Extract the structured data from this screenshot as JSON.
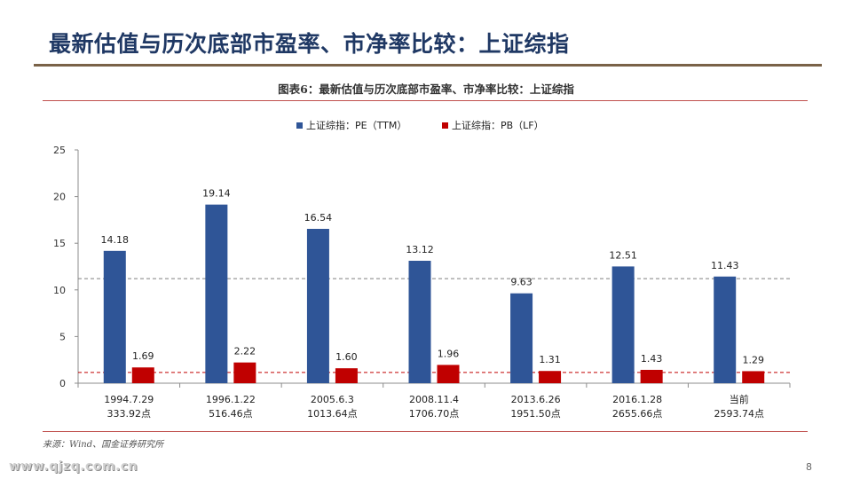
{
  "slide": {
    "title": "最新估值与历次底部市盈率、市净率比较：上证综指",
    "figure_caption": "图表6：最新估值与历次底部市盈率、市净率比较：上证综指",
    "source": "来源：Wind、国金证券研究所",
    "watermark": "www.qjzq.com.cn",
    "page_number": "8"
  },
  "chart_data": {
    "type": "bar",
    "categories": [
      {
        "date": "1994.7.29",
        "index": "333.92点"
      },
      {
        "date": "1996.1.22",
        "index": "516.46点"
      },
      {
        "date": "2005.6.3",
        "index": "1013.64点"
      },
      {
        "date": "2008.11.4",
        "index": "1706.70点"
      },
      {
        "date": "2013.6.26",
        "index": "1951.50点"
      },
      {
        "date": "2016.1.28",
        "index": "2655.66点"
      },
      {
        "date": "当前",
        "index": "2593.74点"
      }
    ],
    "series": [
      {
        "name": "上证综指：PE（TTM）",
        "color": "#2f5597",
        "values": [
          14.18,
          19.14,
          16.54,
          13.12,
          9.63,
          12.51,
          11.43
        ],
        "labels": [
          "14.18",
          "19.14",
          "16.54",
          "13.12",
          "9.63",
          "12.51",
          "11.43"
        ]
      },
      {
        "name": "上证综指：PB（LF）",
        "color": "#c00000",
        "values": [
          1.69,
          2.22,
          1.6,
          1.96,
          1.31,
          1.43,
          1.29
        ],
        "labels": [
          "1.69",
          "2.22",
          "1.60",
          "1.96",
          "1.31",
          "1.43",
          "1.29"
        ]
      }
    ],
    "reference_lines": [
      {
        "value": 11.2,
        "color": "#7f7f7f"
      },
      {
        "value": 1.15,
        "color": "#c00000"
      }
    ],
    "yticks": [
      "0",
      "5",
      "10",
      "15",
      "20",
      "25"
    ],
    "ylim": [
      0,
      25
    ],
    "legend_position": "top-center",
    "grid": false
  }
}
